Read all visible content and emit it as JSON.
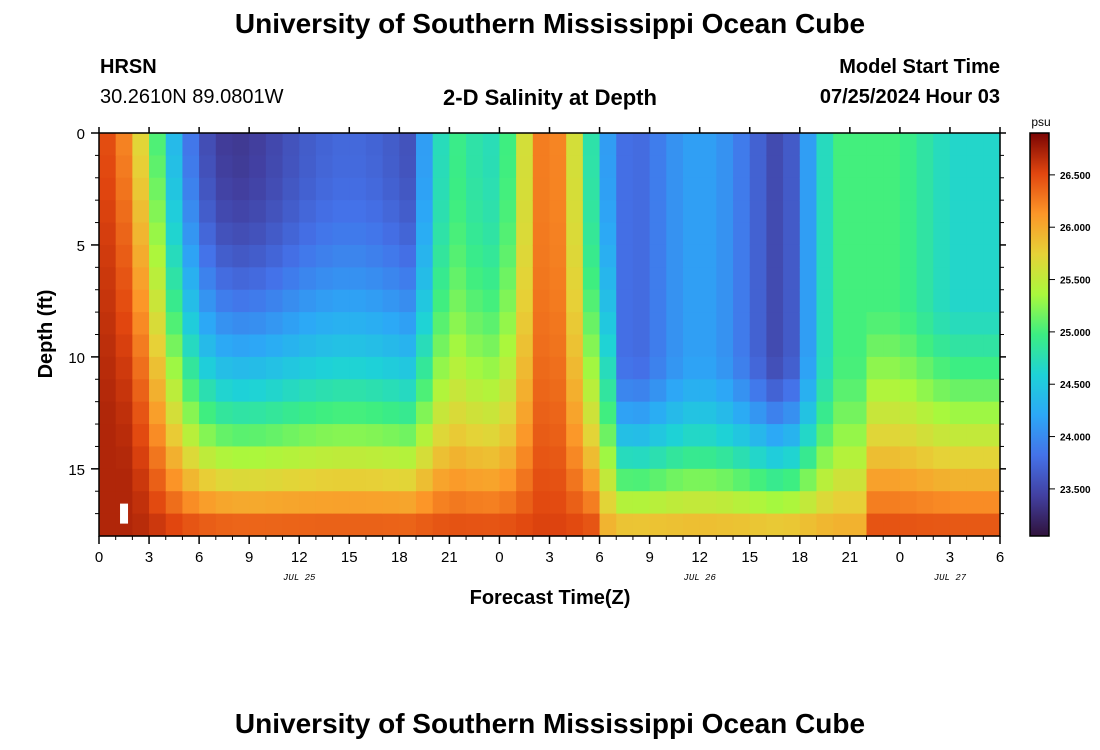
{
  "page": {
    "title_top": "University of Southern Mississippi Ocean Cube",
    "title_bottom": "University of Southern Mississippi Ocean Cube",
    "station": "HRSN",
    "coords": "30.2610N  89.0801W",
    "plot_title": "2-D Salinity at Depth",
    "model_label": "Model Start Time",
    "model_time": "07/25/2024 Hour 03"
  },
  "chart_data": {
    "type": "heatmap",
    "title": "2-D Salinity at Depth",
    "xlabel": "Forecast Time(Z)",
    "ylabel": "Depth (ft)",
    "x_range": [
      0,
      54
    ],
    "y_range": [
      0,
      18
    ],
    "x_ticks": [
      0,
      3,
      6,
      9,
      12,
      15,
      18,
      21,
      24,
      27,
      30,
      33,
      36,
      39,
      42,
      45,
      48,
      51,
      54
    ],
    "x_tick_labels": [
      "0",
      "3",
      "6",
      "9",
      "12",
      "15",
      "18",
      "21",
      "0",
      "3",
      "6",
      "9",
      "12",
      "15",
      "18",
      "21",
      "0",
      "3",
      "6"
    ],
    "y_ticks": [
      0,
      5,
      10,
      15
    ],
    "y_tick_labels": [
      "0",
      "5",
      "10",
      "15"
    ],
    "date_labels": [
      {
        "text": "JUL 25",
        "x": 12
      },
      {
        "text": "JUL 26",
        "x": 36
      },
      {
        "text": "JUL 27",
        "x": 51
      }
    ],
    "colorbar": {
      "unit": "psu",
      "min": 23.05,
      "max": 26.9,
      "ticks": [
        23.5,
        24.0,
        24.5,
        25.0,
        25.5,
        26.0,
        26.5
      ],
      "tick_labels": [
        "23.500",
        "24.000",
        "24.500",
        "25.000",
        "25.500",
        "26.000",
        "26.500"
      ]
    },
    "n_cols": 54,
    "n_rows": 18,
    "marker": {
      "x": 1.5,
      "depth": 17
    }
  }
}
